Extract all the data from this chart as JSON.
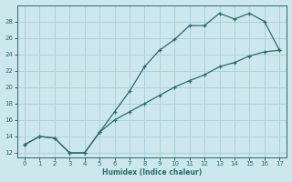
{
  "xlabel": "Humidex (Indice chaleur)",
  "ylabel": "",
  "xlim": [
    -0.5,
    17.5
  ],
  "ylim": [
    11.5,
    30
  ],
  "xticks": [
    0,
    1,
    2,
    3,
    4,
    5,
    6,
    7,
    8,
    9,
    10,
    11,
    12,
    13,
    14,
    15,
    16,
    17
  ],
  "yticks": [
    12,
    14,
    16,
    18,
    20,
    22,
    24,
    26,
    28
  ],
  "bg_color": "#cce8ec",
  "grid_color": "#b0d0d8",
  "line_color": "#2a6b6b",
  "upper_x": [
    0,
    1,
    2,
    3,
    4,
    5,
    6,
    7,
    8,
    9,
    10,
    11,
    12,
    13,
    14,
    15,
    16,
    17
  ],
  "upper_y": [
    13,
    14,
    13.8,
    12,
    12,
    14.5,
    17,
    19.5,
    22.5,
    24.5,
    25.8,
    27.5,
    27.5,
    29,
    28.3,
    29,
    28,
    24.5
  ],
  "lower_x": [
    0,
    1,
    2,
    3,
    4,
    5,
    6,
    7,
    8,
    9,
    10,
    11,
    12,
    13,
    14,
    15,
    16,
    17
  ],
  "lower_y": [
    13,
    14,
    13.8,
    12,
    12,
    14.5,
    16.0,
    17.0,
    18.0,
    19.0,
    20.0,
    20.8,
    21.5,
    22.5,
    23.0,
    23.8,
    24.3,
    24.5
  ]
}
